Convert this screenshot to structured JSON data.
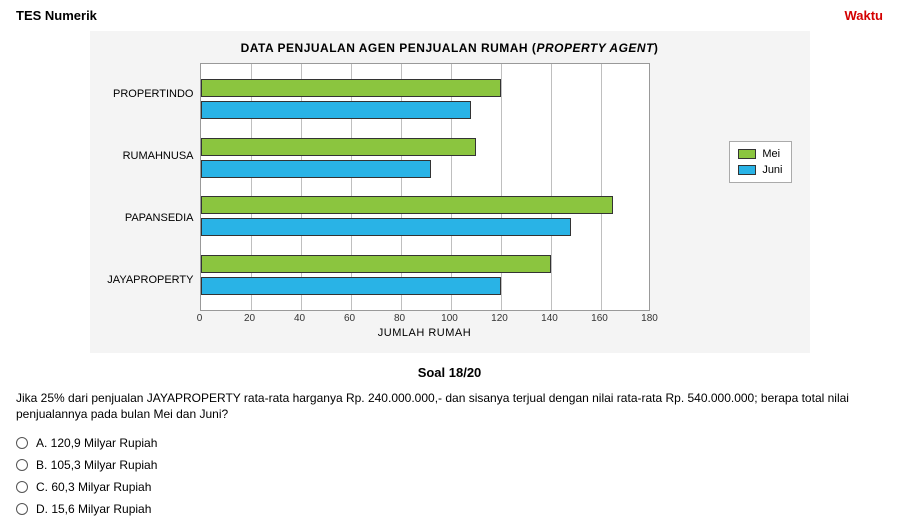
{
  "header": {
    "left": "TES Numerik",
    "right": "Waktu"
  },
  "chart": {
    "type": "bar-horizontal-grouped",
    "title_prefix": "DATA PENJUALAN AGEN PENJUALAN RUMAH (",
    "title_italic": "PROPERTY AGENT",
    "title_suffix": ")",
    "x_title": "JUMLAH RUMAH",
    "x_min": 0,
    "x_max": 180,
    "x_step": 20,
    "x_ticks": [
      0,
      20,
      40,
      60,
      80,
      100,
      120,
      140,
      160,
      180
    ],
    "categories": [
      "PROPERTINDO",
      "RUMAHNUSA",
      "PAPANSEDIA",
      "JAYAPROPERTY"
    ],
    "series": [
      {
        "name": "Mei",
        "color": "#8bc53f",
        "values": [
          120,
          110,
          165,
          140
        ]
      },
      {
        "name": "Juni",
        "color": "#29b3e6",
        "values": [
          108,
          92,
          148,
          120
        ]
      }
    ],
    "background": "#f4f4f4",
    "plot_bg": "#ffffff",
    "grid_color": "#bfbfbf",
    "border_color": "#999999",
    "font_family": "Arial",
    "label_fontsize": 11
  },
  "legend": {
    "items": [
      {
        "label": "Mei",
        "color": "#8bc53f"
      },
      {
        "label": "Juni",
        "color": "#29b3e6"
      }
    ]
  },
  "soal": {
    "counter": "Soal 18/20",
    "text": "Jika 25% dari penjualan JAYAPROPERTY rata-rata harganya Rp. 240.000.000,- dan sisanya terjual dengan nilai rata-rata Rp. 540.000.000; berapa total nilai penjualannya pada bulan Mei dan Juni?"
  },
  "options": [
    {
      "key": "A",
      "text": "A. 120,9 Milyar Rupiah"
    },
    {
      "key": "B",
      "text": "B. 105,3 Milyar Rupiah"
    },
    {
      "key": "C",
      "text": "C. 60,3 Milyar Rupiah"
    },
    {
      "key": "D",
      "text": "D. 15,6 Milyar Rupiah"
    }
  ]
}
